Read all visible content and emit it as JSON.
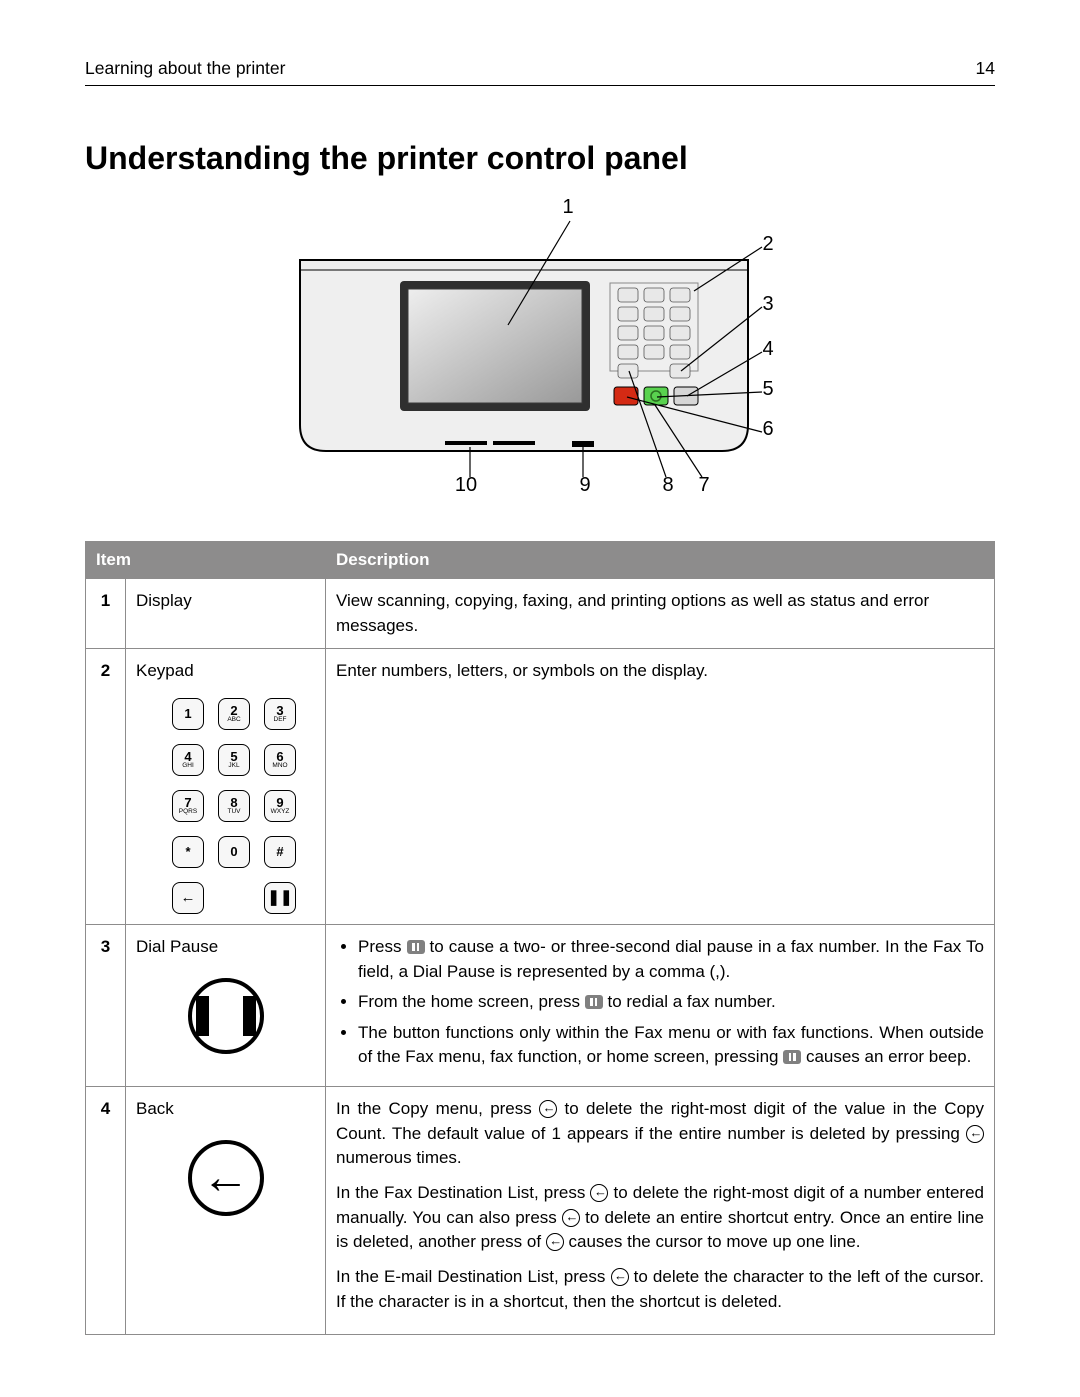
{
  "header": {
    "section": "Learning about the printer",
    "page_number": "14"
  },
  "title": "Understanding the printer control panel",
  "diagram": {
    "callouts": [
      "1",
      "2",
      "3",
      "4",
      "5",
      "6",
      "7",
      "8",
      "9",
      "10"
    ],
    "callout_fontsize": 20,
    "panel_fill": "#efefef",
    "panel_stroke": "#000000",
    "screen_fill": "#bdbdbd",
    "screen_stroke": "#3a3a3a",
    "keypad_key_fill": "#e8e8e8",
    "start_btn_fill": "#59d24f",
    "stop_btn_fill": "#d42a14",
    "home_btn_fill": "#d6d6d6"
  },
  "table": {
    "header_bg": "#8d8c8c",
    "header_fg": "#ffffff",
    "border_color": "#8d8c8c",
    "columns": [
      "",
      "Item",
      "Description"
    ],
    "rows": [
      {
        "num": "1",
        "item": "Display",
        "desc_plain": "View scanning, copying, faxing, and printing options as well as status and error messages."
      },
      {
        "num": "2",
        "item": "Keypad",
        "keypad": [
          {
            "n": "1",
            "s": ""
          },
          {
            "n": "2",
            "s": "ABC"
          },
          {
            "n": "3",
            "s": "DEF"
          },
          {
            "n": "4",
            "s": "GHI"
          },
          {
            "n": "5",
            "s": "JKL"
          },
          {
            "n": "6",
            "s": "MNO"
          },
          {
            "n": "7",
            "s": "PQRS"
          },
          {
            "n": "8",
            "s": "TUV"
          },
          {
            "n": "9",
            "s": "WXYZ"
          },
          {
            "n": "*",
            "s": ""
          },
          {
            "n": "0",
            "s": ""
          },
          {
            "n": "#",
            "s": ""
          }
        ],
        "keypad_extra": [
          {
            "n": "←",
            "s": ""
          },
          {
            "n": "",
            "s": ""
          },
          {
            "n": "❚❚",
            "s": ""
          }
        ],
        "desc_plain": "Enter numbers, letters, or symbols on the display."
      },
      {
        "num": "3",
        "item": "Dial Pause",
        "bullets": [
          {
            "pre": "Press ",
            "post": " to cause a two- or three-second dial pause in a fax number. In the Fax To field, a Dial Pause is represented by a comma (,).",
            "icon": "pause"
          },
          {
            "pre": "From the home screen, press ",
            "post": " to redial a fax number.",
            "icon": "pause"
          },
          {
            "pre": "The button functions only within the Fax menu or with fax functions. When outside of the Fax menu, fax function, or home screen, pressing ",
            "post": " causes an error beep.",
            "icon": "pause"
          }
        ]
      },
      {
        "num": "4",
        "item": "Back",
        "paras": [
          {
            "segments": [
              {
                "t": "In the Copy menu, press "
              },
              {
                "icon": "back"
              },
              {
                "t": " to delete the right-most digit of the value in the Copy Count. The default value of 1 appears if the entire number is deleted by pressing "
              },
              {
                "icon": "back"
              },
              {
                "t": " numerous times."
              }
            ]
          },
          {
            "segments": [
              {
                "t": "In the Fax Destination List, press "
              },
              {
                "icon": "back"
              },
              {
                "t": " to delete the right-most digit of a number entered manually. You can also press "
              },
              {
                "icon": "back"
              },
              {
                "t": " to delete an entire shortcut entry. Once an entire line is deleted, another press of "
              },
              {
                "icon": "back"
              },
              {
                "t": " causes the cursor to move up one line."
              }
            ]
          },
          {
            "segments": [
              {
                "t": "In the E-mail Destination List, press "
              },
              {
                "icon": "back"
              },
              {
                "t": " to delete the character to the left of the cursor. If the character is in a shortcut, then the shortcut is deleted."
              }
            ]
          }
        ]
      }
    ]
  }
}
